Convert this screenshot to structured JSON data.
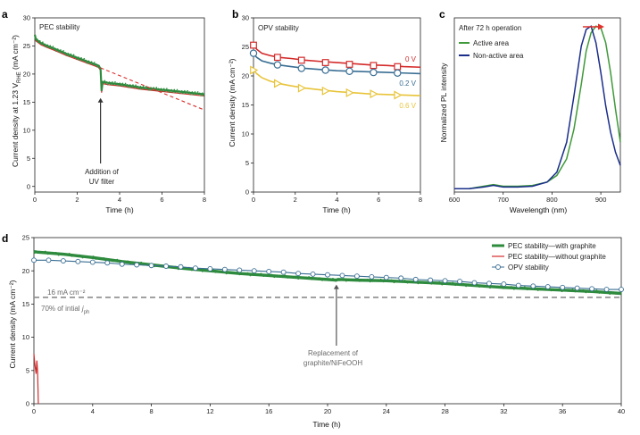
{
  "colors": {
    "pec_green": "#2e8b3e",
    "pec_red": "#d42a2a",
    "dash_red": "#d9302c",
    "opv_red": "#d42a2a",
    "opv_blue": "#3a6e93",
    "opv_yellow": "#e8c43a",
    "pl_green": "#3f9a3a",
    "pl_blue": "#1a2e8a",
    "grey": "#8c8c8c",
    "arrow_red": "#e0312c"
  },
  "panels": {
    "a": {
      "letter": "a",
      "title": "PEC stability",
      "xlabel": "Time (h)",
      "ylabel_main": "Current density at 1.23 V",
      "ylabel_sub": "RHE",
      "ylabel_tail": " (mA cm⁻²)",
      "annotation_line1": "Addition of",
      "annotation_line2": "UV filter"
    },
    "b": {
      "letter": "b",
      "title": "OPV stability",
      "xlabel": "Time (h)",
      "ylabel": "Current density (mA cm⁻²)"
    },
    "c": {
      "letter": "c",
      "title": "After 72 h operation",
      "xlabel": "Wavelength (nm)",
      "ylabel": "Normalized PL intensity"
    },
    "d": {
      "letter": "d",
      "xlabel": "Time (h)",
      "ylabel": "Current density (mA cm⁻²)",
      "ref_label_1": "16 mA cm⁻²",
      "ref_label_2_main": "70% of intial ",
      "ref_label_2_j": "j",
      "ref_label_2_sub": "ph",
      "annotation_line1": "Replacement of",
      "annotation_line2": "graphite/NiFeOOH"
    }
  },
  "chart_data": [
    {
      "panel": "a",
      "type": "line",
      "title": "PEC stability",
      "xlabel": "Time (h)",
      "ylabel": "Current density at 1.23 V_RHE (mA cm⁻²)",
      "xlim": [
        0,
        8
      ],
      "ylim": [
        -1,
        30
      ],
      "xticks": [
        0,
        2,
        4,
        6,
        8
      ],
      "yticks": [
        0,
        5,
        10,
        15,
        20,
        25,
        30
      ],
      "series": [
        {
          "style": "noisy-line",
          "x": [
            0,
            0.05,
            0.3,
            0.6,
            1.0,
            1.5,
            2.0,
            2.5,
            3.0,
            3.1,
            3.15,
            3.2,
            3.5,
            4.0,
            4.5,
            5.0,
            5.5,
            6.0,
            6.5,
            7.0,
            7.5,
            8.0
          ],
          "y": [
            27.0,
            26.2,
            25.5,
            25.0,
            24.4,
            23.6,
            22.9,
            22.2,
            21.5,
            21.0,
            17.0,
            18.6,
            18.4,
            18.2,
            17.9,
            17.6,
            17.4,
            17.2,
            17.0,
            16.8,
            16.6,
            16.4
          ]
        },
        {
          "style": "dashed-extrapolation",
          "x": [
            3.1,
            8.0
          ],
          "y": [
            21.1,
            13.6
          ]
        }
      ],
      "annotation": {
        "x": 3.1,
        "y": 17.0
      }
    },
    {
      "panel": "b",
      "type": "line",
      "title": "OPV stability",
      "xlabel": "Time (h)",
      "ylabel": "Current density (mA cm⁻²)",
      "xlim": [
        0,
        8
      ],
      "ylim": [
        0,
        30
      ],
      "xticks": [
        0,
        2,
        4,
        6,
        8
      ],
      "yticks": [
        0,
        5,
        10,
        15,
        20,
        25,
        30
      ],
      "series": [
        {
          "name": "0 V",
          "marker": "square",
          "x": [
            0,
            0.15,
            0.4,
            0.8,
            1.2,
            1.8,
            2.5,
            3.2,
            4.0,
            4.8,
            5.6,
            6.4,
            7.2,
            8.0
          ],
          "y": [
            25.3,
            24.6,
            23.9,
            23.5,
            23.2,
            23.0,
            22.7,
            22.5,
            22.3,
            22.1,
            21.9,
            21.8,
            21.6,
            21.5
          ],
          "marker_x": [
            0,
            1.15,
            2.3,
            3.45,
            4.6,
            5.75,
            6.9
          ],
          "marker_y": [
            25.3,
            23.2,
            22.7,
            22.3,
            22.0,
            21.8,
            21.6
          ]
        },
        {
          "name": "0.2 V",
          "marker": "circle",
          "x": [
            0,
            0.15,
            0.4,
            0.8,
            1.2,
            1.8,
            2.5,
            3.2,
            4.0,
            4.8,
            5.6,
            6.4,
            7.2,
            8.0
          ],
          "y": [
            23.9,
            23.2,
            22.6,
            22.2,
            21.9,
            21.6,
            21.3,
            21.1,
            20.9,
            20.8,
            20.7,
            20.6,
            20.5,
            20.4
          ],
          "marker_x": [
            0,
            1.15,
            2.3,
            3.45,
            4.6,
            5.75,
            6.9
          ],
          "marker_y": [
            23.9,
            21.9,
            21.3,
            21.0,
            20.8,
            20.6,
            20.5
          ]
        },
        {
          "name": "0.6 V",
          "marker": "triangle-right",
          "x": [
            0,
            0.15,
            0.4,
            0.8,
            1.2,
            1.8,
            2.5,
            3.2,
            4.0,
            4.8,
            5.6,
            6.4,
            7.2,
            8.0
          ],
          "y": [
            21.0,
            20.4,
            19.7,
            19.1,
            18.7,
            18.3,
            17.9,
            17.6,
            17.3,
            17.1,
            16.9,
            16.8,
            16.7,
            16.6
          ],
          "marker_x": [
            0,
            1.15,
            2.3,
            3.45,
            4.6,
            5.75,
            6.9
          ],
          "marker_y": [
            21.0,
            18.7,
            17.9,
            17.4,
            17.1,
            16.9,
            16.7
          ]
        }
      ]
    },
    {
      "panel": "c",
      "type": "line",
      "title": "After 72 h operation",
      "xlabel": "Wavelength (nm)",
      "ylabel": "Normalized PL intensity",
      "xlim": [
        600,
        940
      ],
      "ylim": [
        0,
        1.05
      ],
      "xticks": [
        600,
        700,
        800,
        900
      ],
      "legend_position": "top-left",
      "series": [
        {
          "name": "Active area",
          "x": [
            600,
            630,
            660,
            680,
            700,
            730,
            760,
            790,
            810,
            830,
            845,
            860,
            870,
            880,
            890,
            900,
            910,
            920,
            930,
            940
          ],
          "y": [
            0.02,
            0.02,
            0.035,
            0.045,
            0.035,
            0.035,
            0.04,
            0.06,
            0.1,
            0.2,
            0.38,
            0.65,
            0.85,
            0.96,
            1.0,
            0.99,
            0.9,
            0.72,
            0.5,
            0.3
          ]
        },
        {
          "name": "Non-active area",
          "x": [
            600,
            630,
            660,
            680,
            700,
            730,
            760,
            790,
            810,
            830,
            845,
            860,
            870,
            880,
            890,
            900,
            910,
            920,
            930,
            940
          ],
          "y": [
            0.02,
            0.02,
            0.03,
            0.04,
            0.03,
            0.03,
            0.035,
            0.06,
            0.12,
            0.3,
            0.58,
            0.88,
            0.98,
            1.0,
            0.9,
            0.72,
            0.52,
            0.36,
            0.24,
            0.16
          ]
        }
      ]
    },
    {
      "panel": "d",
      "type": "line",
      "xlabel": "Time (h)",
      "ylabel": "Current density (mA cm⁻²)",
      "xlim": [
        0,
        40
      ],
      "ylim": [
        0,
        25
      ],
      "xticks": [
        0,
        4,
        8,
        12,
        16,
        20,
        24,
        28,
        32,
        36,
        40
      ],
      "yticks": [
        0,
        5,
        10,
        15,
        20,
        25
      ],
      "legend_position": "top-right",
      "reference_line": 16,
      "series": [
        {
          "name": "PEC stability—with graphite",
          "x": [
            0,
            0.3,
            2,
            4,
            6,
            8,
            10,
            12,
            14,
            16,
            18,
            20,
            20.6,
            20.7,
            22,
            24,
            26,
            28,
            30,
            32,
            34,
            36,
            38,
            40
          ],
          "y": [
            22.9,
            22.8,
            22.5,
            22.0,
            21.4,
            20.9,
            20.4,
            20.0,
            19.6,
            19.3,
            19.0,
            18.7,
            18.6,
            18.7,
            18.6,
            18.5,
            18.3,
            18.1,
            17.8,
            17.5,
            17.3,
            17.1,
            16.9,
            16.6
          ]
        },
        {
          "name": "PEC stability—without graphite",
          "x": [
            0,
            0.05,
            0.1,
            0.15,
            0.2,
            0.25,
            0.28,
            0.3
          ],
          "y": [
            7.5,
            6.2,
            5.3,
            4.5,
            6.5,
            4.8,
            2.0,
            0.0
          ]
        },
        {
          "name": "OPV stability",
          "marker": "circle",
          "x": [
            0,
            1,
            2,
            3,
            4,
            5,
            6,
            7,
            8,
            9,
            10,
            11,
            12,
            13,
            14,
            15,
            16,
            17,
            18,
            19,
            20,
            21,
            22,
            23,
            24,
            25,
            26,
            27,
            28,
            29,
            30,
            31,
            32,
            33,
            34,
            35,
            36,
            37,
            38,
            39,
            40
          ],
          "y": [
            21.6,
            21.6,
            21.5,
            21.4,
            21.3,
            21.2,
            21.0,
            20.9,
            20.8,
            20.7,
            20.6,
            20.4,
            20.3,
            20.2,
            20.1,
            20.0,
            19.9,
            19.8,
            19.6,
            19.5,
            19.4,
            19.3,
            19.2,
            19.1,
            19.0,
            18.9,
            18.7,
            18.6,
            18.5,
            18.4,
            18.2,
            18.1,
            18.0,
            17.8,
            17.7,
            17.6,
            17.5,
            17.4,
            17.3,
            17.2,
            17.2
          ]
        }
      ],
      "annotation": {
        "x": 20.6,
        "y": 18.6
      }
    }
  ]
}
